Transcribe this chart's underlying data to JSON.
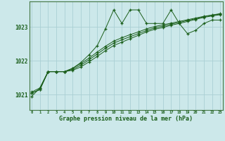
{
  "title": "Graphe pression niveau de la mer (hPa)",
  "background_color": "#cce8ea",
  "plot_bg_color": "#cce8ea",
  "grid_color": "#aad0d4",
  "line_color": "#1a5e1a",
  "x_ticks": [
    0,
    1,
    2,
    3,
    4,
    5,
    6,
    7,
    8,
    9,
    10,
    11,
    12,
    13,
    14,
    15,
    16,
    17,
    18,
    19,
    20,
    21,
    22,
    23
  ],
  "y_ticks": [
    1021,
    1022,
    1023
  ],
  "ylim": [
    1020.55,
    1023.75
  ],
  "xlim": [
    -0.3,
    23.3
  ],
  "series1_x": [
    0,
    1,
    2,
    3,
    4,
    5,
    6,
    7,
    8,
    9,
    10,
    11,
    12,
    13,
    14,
    15,
    16,
    17,
    18,
    19,
    20,
    21,
    22,
    23
  ],
  "series1_y": [
    1020.95,
    1021.2,
    1021.68,
    1021.68,
    1021.68,
    1021.78,
    1021.95,
    1022.18,
    1022.45,
    1022.95,
    1023.5,
    1023.1,
    1023.5,
    1023.5,
    1023.1,
    1023.1,
    1023.1,
    1023.5,
    1023.1,
    1022.8,
    1022.9,
    1023.1,
    1023.2,
    1023.2
  ],
  "series2_x": [
    0,
    1,
    2,
    3,
    4,
    5,
    6,
    7,
    8,
    9,
    10,
    11,
    12,
    13,
    14,
    15,
    16,
    17,
    18,
    19,
    20,
    21,
    22,
    23
  ],
  "series2_y": [
    1021.05,
    1021.15,
    1021.68,
    1021.68,
    1021.68,
    1021.72,
    1021.82,
    1021.97,
    1022.13,
    1022.3,
    1022.45,
    1022.55,
    1022.65,
    1022.75,
    1022.85,
    1022.93,
    1022.98,
    1023.05,
    1023.1,
    1023.16,
    1023.22,
    1023.28,
    1023.32,
    1023.36
  ],
  "series3_x": [
    0,
    1,
    2,
    3,
    4,
    5,
    6,
    7,
    8,
    9,
    10,
    11,
    12,
    13,
    14,
    15,
    16,
    17,
    18,
    19,
    20,
    21,
    22,
    23
  ],
  "series3_y": [
    1021.05,
    1021.15,
    1021.68,
    1021.68,
    1021.68,
    1021.75,
    1021.87,
    1022.03,
    1022.2,
    1022.37,
    1022.52,
    1022.62,
    1022.71,
    1022.8,
    1022.89,
    1022.97,
    1023.02,
    1023.08,
    1023.13,
    1023.19,
    1023.24,
    1023.3,
    1023.34,
    1023.38
  ],
  "series4_x": [
    0,
    1,
    2,
    3,
    4,
    5,
    6,
    7,
    8,
    9,
    10,
    11,
    12,
    13,
    14,
    15,
    16,
    17,
    18,
    19,
    20,
    21,
    22,
    23
  ],
  "series4_y": [
    1021.08,
    1021.2,
    1021.68,
    1021.68,
    1021.68,
    1021.78,
    1021.92,
    1022.08,
    1022.26,
    1022.43,
    1022.58,
    1022.68,
    1022.77,
    1022.85,
    1022.94,
    1023.01,
    1023.06,
    1023.11,
    1023.16,
    1023.21,
    1023.26,
    1023.31,
    1023.35,
    1023.39
  ]
}
